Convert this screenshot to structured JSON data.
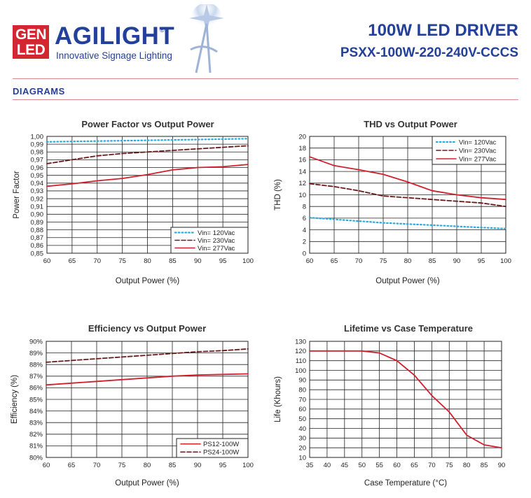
{
  "header": {
    "badge_line1": "GEN",
    "badge_line2": "LED",
    "brand": "AGILIGHT",
    "registered": "®",
    "tagline": "Innovative Signage Lighting",
    "product_title": "100W LED DRIVER",
    "product_model": "PSXX-100W-220-240V-CCCS",
    "section_label": "DIAGRAMS"
  },
  "colors": {
    "brand_blue": "#23409a",
    "brand_red": "#d22630",
    "series_red": "#d0202e",
    "series_dark": "#6b1a1a",
    "series_cyan": "#29a9e0"
  },
  "chart_data": [
    {
      "id": "pf",
      "type": "line",
      "title": "Power Factor vs Output Power",
      "xlabel": "Output Power (%)",
      "ylabel": "Power Factor",
      "x_ticks": [
        60,
        65,
        70,
        75,
        80,
        85,
        90,
        95,
        100
      ],
      "y_ticks": [
        "0,85",
        "0,86",
        "0,87",
        "0,88",
        "0,89",
        "0,90",
        "0,91",
        "0,92",
        "0,93",
        "0,94",
        "0,95",
        "0,96",
        "0,97",
        "0,98",
        "0,99",
        "1,00"
      ],
      "xlim": [
        60,
        100
      ],
      "ylim": [
        0.85,
        1.0
      ],
      "legend_position": "bottom-right",
      "series": [
        {
          "name": "Vin= 120Vac",
          "style": "dotted",
          "color": "#29a9e0",
          "x": [
            60,
            70,
            80,
            90,
            100
          ],
          "y": [
            0.993,
            0.994,
            0.995,
            0.996,
            0.997
          ]
        },
        {
          "name": "Vin= 230Vac",
          "style": "dashed",
          "color": "#6b1a1a",
          "x": [
            60,
            65,
            70,
            75,
            80,
            85,
            90,
            95,
            100
          ],
          "y": [
            0.965,
            0.97,
            0.975,
            0.978,
            0.98,
            0.982,
            0.984,
            0.986,
            0.988
          ]
        },
        {
          "name": "Vin= 277Vac",
          "style": "solid",
          "color": "#d0202e",
          "x": [
            60,
            65,
            70,
            75,
            80,
            85,
            90,
            95,
            100
          ],
          "y": [
            0.936,
            0.939,
            0.943,
            0.946,
            0.951,
            0.957,
            0.96,
            0.961,
            0.964
          ]
        }
      ]
    },
    {
      "id": "thd",
      "type": "line",
      "title": "THD vs Output Power",
      "xlabel": "Output Power (%)",
      "ylabel": "THD (%)",
      "x_ticks": [
        60,
        65,
        70,
        75,
        80,
        85,
        90,
        95,
        100
      ],
      "y_ticks": [
        "0",
        "2",
        "4",
        "6",
        "8",
        "10",
        "12",
        "14",
        "16",
        "18",
        "20"
      ],
      "xlim": [
        60,
        100
      ],
      "ylim": [
        0,
        20
      ],
      "legend_position": "top-right",
      "series": [
        {
          "name": "Vin= 120Vac",
          "style": "dotted",
          "color": "#29a9e0",
          "x": [
            60,
            65,
            70,
            75,
            80,
            85,
            90,
            95,
            100
          ],
          "y": [
            6.1,
            5.8,
            5.5,
            5.2,
            5.0,
            4.8,
            4.6,
            4.4,
            4.2
          ]
        },
        {
          "name": "Vin= 230Vac",
          "style": "dashed",
          "color": "#6b1a1a",
          "x": [
            60,
            65,
            70,
            75,
            80,
            85,
            90,
            95,
            100
          ],
          "y": [
            11.9,
            11.4,
            10.7,
            9.8,
            9.5,
            9.2,
            8.9,
            8.6,
            8.0
          ]
        },
        {
          "name": "Vin= 277Vac",
          "style": "solid",
          "color": "#d0202e",
          "x": [
            60,
            65,
            70,
            75,
            80,
            85,
            90,
            95,
            100
          ],
          "y": [
            16.5,
            15.0,
            14.3,
            13.5,
            12.2,
            10.7,
            10.0,
            9.5,
            9.2
          ]
        }
      ]
    },
    {
      "id": "eff",
      "type": "line",
      "title": "Efficiency vs Output Power",
      "xlabel": "Output Power (%)",
      "ylabel": "Efficiency (%)",
      "x_ticks": [
        60,
        65,
        70,
        75,
        80,
        85,
        90,
        95,
        100
      ],
      "y_ticks": [
        "80%",
        "81%",
        "82%",
        "83%",
        "84%",
        "85%",
        "86%",
        "87%",
        "88%",
        "89%",
        "90%"
      ],
      "xlim": [
        60,
        100
      ],
      "ylim": [
        80,
        90
      ],
      "legend_position": "bottom-right",
      "series": [
        {
          "name": "PS12-100W",
          "style": "solid",
          "color": "#d0202e",
          "x": [
            60,
            65,
            70,
            75,
            80,
            85,
            90,
            95,
            100
          ],
          "y": [
            86.25,
            86.4,
            86.55,
            86.7,
            86.85,
            87.0,
            87.1,
            87.15,
            87.2
          ]
        },
        {
          "name": "PS24-100W",
          "style": "dashed",
          "color": "#6b1a1a",
          "x": [
            60,
            65,
            70,
            75,
            80,
            85,
            90,
            95,
            100
          ],
          "y": [
            88.2,
            88.35,
            88.5,
            88.65,
            88.8,
            88.95,
            89.1,
            89.2,
            89.35
          ]
        }
      ]
    },
    {
      "id": "life",
      "type": "line",
      "title": "Lifetime vs Case Temperature",
      "xlabel": "Case Temperature (°C)",
      "ylabel": "Life (Khours)",
      "x_ticks": [
        35,
        40,
        45,
        50,
        55,
        60,
        65,
        70,
        75,
        80,
        85,
        90
      ],
      "y_ticks": [
        "10",
        "20",
        "30",
        "40",
        "50",
        "60",
        "70",
        "80",
        "90",
        "100",
        "110",
        "120",
        "130"
      ],
      "xlim": [
        35,
        90
      ],
      "ylim": [
        10,
        130
      ],
      "series": [
        {
          "name": "",
          "style": "solid",
          "color": "#d0202e",
          "x": [
            35,
            40,
            45,
            50,
            55,
            60,
            65,
            70,
            75,
            80,
            85,
            90
          ],
          "y": [
            120,
            120,
            120,
            120,
            118,
            110,
            95,
            74,
            57,
            33,
            23,
            20
          ]
        }
      ]
    }
  ]
}
